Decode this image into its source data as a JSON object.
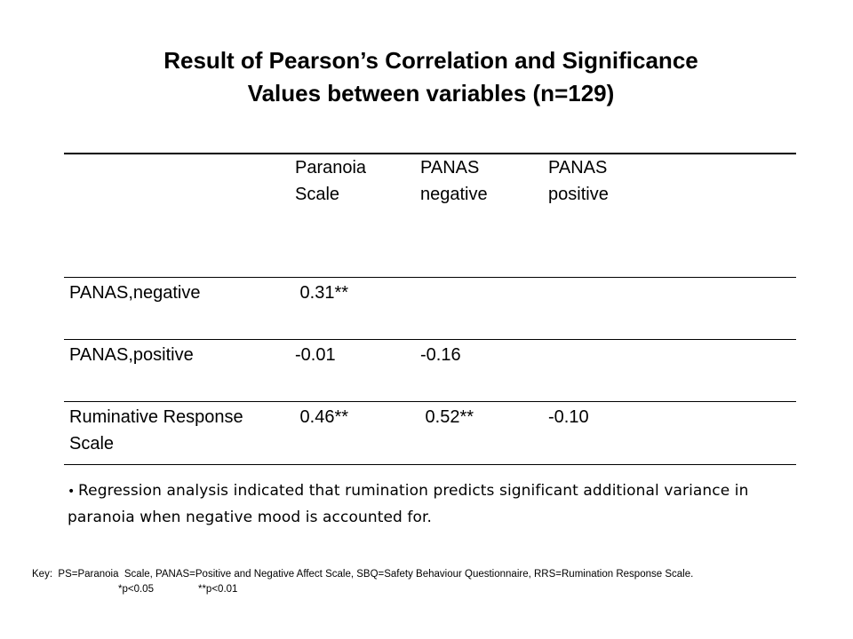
{
  "title": {
    "line1": "Result of Pearson’s Correlation and Significance",
    "line2": "Values between variables (n=129)"
  },
  "table": {
    "headers": [
      "",
      "Paranoia Scale",
      "PANAS negative",
      "PANAS positive"
    ],
    "rows": [
      [
        "PANAS,negative",
        " 0.31**",
        "",
        ""
      ],
      [
        "PANAS,positive",
        "-0.01",
        "-0.16",
        ""
      ],
      [
        "Ruminative Response Scale",
        " 0.46**",
        " 0.52**",
        "-0.10"
      ]
    ]
  },
  "bullet": {
    "symbol": "•",
    "text": "Regression analysis indicated that rumination predicts significant additional variance in paranoia when negative mood is accounted for."
  },
  "key": {
    "line1": "Key:  PS=Paranoia  Scale, PANAS=Positive and Negative Affect Scale, SBQ=Safety Behaviour Questionnaire, RRS=Rumination Response Scale.",
    "p05": "*p<0.05",
    "p01": "**p<0.01"
  }
}
